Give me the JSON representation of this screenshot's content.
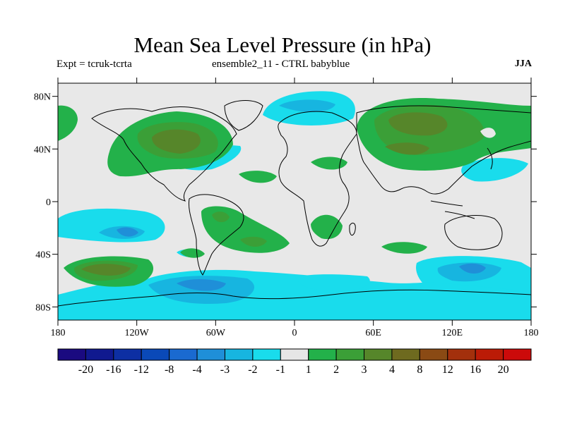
{
  "header": {
    "title": "Mean Sea Level Pressure (in hPa)",
    "experiment": "Expt = tcruk-tcrta",
    "ensemble": "ensemble2_11 - CTRL babyblue",
    "season": "JJA"
  },
  "map": {
    "lon_range": [
      -180,
      180
    ],
    "lat_range": [
      -90,
      90
    ],
    "lat_ticks": [
      {
        "value": 80,
        "label": "80N"
      },
      {
        "value": 40,
        "label": "40N"
      },
      {
        "value": 0,
        "label": "0"
      },
      {
        "value": -40,
        "label": "40S"
      },
      {
        "value": -80,
        "label": "80S"
      }
    ],
    "lon_ticks": [
      {
        "value": -180,
        "label": "180"
      },
      {
        "value": -120,
        "label": "120W"
      },
      {
        "value": -60,
        "label": "60W"
      },
      {
        "value": 0,
        "label": "0"
      },
      {
        "value": 60,
        "label": "60E"
      },
      {
        "value": 120,
        "label": "120E"
      },
      {
        "value": 180,
        "label": "180"
      }
    ],
    "background_color": "#e8e8e8"
  },
  "colorbar": {
    "colors": [
      "#1a0a80",
      "#10198f",
      "#0d2fa3",
      "#0a49b8",
      "#1a6ad0",
      "#1f8fd8",
      "#17b5e0",
      "#19dcec",
      "#e6e6e6",
      "#23b14a",
      "#3b9f37",
      "#56862a",
      "#6e6a1f",
      "#8a4a14",
      "#a3300c",
      "#bb1b06",
      "#cc0a0a"
    ],
    "labels": [
      "-20",
      "-16",
      "-12",
      "-8",
      "-4",
      "-3",
      "-2",
      "-1",
      "1",
      "2",
      "3",
      "4",
      "8",
      "12",
      "16",
      "20"
    ]
  }
}
